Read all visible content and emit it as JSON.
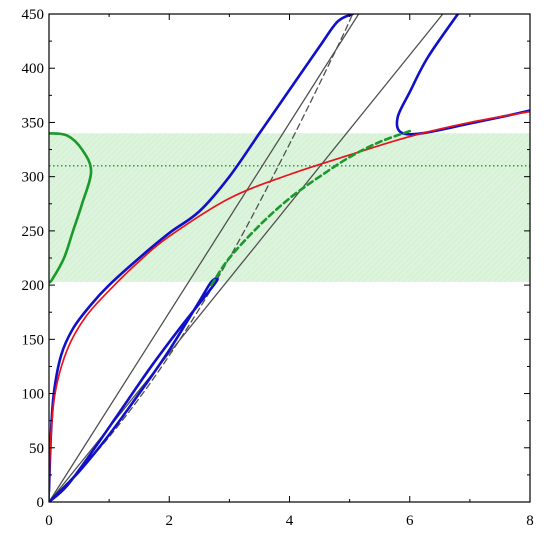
{
  "chart_data": {
    "type": "line",
    "title": "",
    "xlabel": "",
    "ylabel": "",
    "xlim": [
      0,
      8
    ],
    "ylim": [
      0,
      450
    ],
    "x_ticks": [
      "0",
      "2",
      "4",
      "6",
      "8"
    ],
    "y_ticks": [
      "0",
      "50",
      "100",
      "150",
      "200",
      "250",
      "300",
      "350",
      "400",
      "450"
    ],
    "grid": false,
    "legend": "none",
    "colors": {
      "blue": "#1010c8",
      "red": "#e8141c",
      "green": "#1a9a2a",
      "gray": "#505050",
      "band_fill": "#d6f2d6"
    },
    "shaded_band": {
      "y": [
        203,
        340
      ]
    },
    "hline_dotted": {
      "y": 310
    },
    "series": [
      {
        "id": "gray-line-1",
        "style": "gray solid",
        "points": [
          [
            0,
            0
          ],
          [
            5.15,
            450
          ]
        ]
      },
      {
        "id": "gray-line-2",
        "style": "gray solid",
        "points": [
          [
            0,
            0
          ],
          [
            6.55,
            450
          ]
        ]
      },
      {
        "id": "gray-dashed",
        "style": "gray dashed",
        "points": [
          [
            0,
            0
          ],
          [
            1.0,
            60
          ],
          [
            2.0,
            135
          ],
          [
            3.0,
            225
          ],
          [
            4.0,
            330
          ],
          [
            4.8,
            420
          ],
          [
            5.05,
            450
          ]
        ]
      },
      {
        "id": "blue-upper",
        "style": "blue",
        "points": [
          [
            0.0,
            10
          ],
          [
            0.03,
            60
          ],
          [
            0.08,
            100
          ],
          [
            0.2,
            135
          ],
          [
            0.4,
            160
          ],
          [
            0.7,
            182
          ],
          [
            1.0,
            200
          ],
          [
            1.5,
            225
          ],
          [
            2.0,
            248
          ],
          [
            2.5,
            268
          ],
          [
            3.0,
            300
          ],
          [
            3.5,
            340
          ],
          [
            4.0,
            380
          ],
          [
            4.5,
            420
          ],
          [
            4.8,
            443
          ],
          [
            5.05,
            450
          ]
        ]
      },
      {
        "id": "blue-lower-right",
        "style": "blue",
        "points": [
          [
            6.8,
            450
          ],
          [
            6.3,
            410
          ],
          [
            6.0,
            378
          ],
          [
            5.8,
            355
          ],
          [
            5.85,
            341
          ],
          [
            6.2,
            340
          ],
          [
            7.0,
            349
          ],
          [
            7.6,
            356
          ],
          [
            8.0,
            361
          ]
        ]
      },
      {
        "id": "blue-loop",
        "style": "blue",
        "points": [
          [
            0.0,
            0
          ],
          [
            0.3,
            15
          ],
          [
            0.7,
            45
          ],
          [
            1.2,
            85
          ],
          [
            1.7,
            125
          ],
          [
            2.2,
            162
          ],
          [
            2.6,
            190
          ],
          [
            2.8,
            205
          ],
          [
            2.7,
            203
          ],
          [
            2.5,
            185
          ],
          [
            2.0,
            140
          ],
          [
            1.5,
            100
          ],
          [
            1.0,
            62
          ],
          [
            0.5,
            28
          ],
          [
            0.0,
            0
          ]
        ]
      },
      {
        "id": "red-curve",
        "style": "red",
        "points": [
          [
            0.0,
            0
          ],
          [
            0.02,
            50
          ],
          [
            0.1,
            100
          ],
          [
            0.3,
            140
          ],
          [
            0.6,
            170
          ],
          [
            1.0,
            195
          ],
          [
            1.5,
            222
          ],
          [
            2.0,
            245
          ],
          [
            3.0,
            280
          ],
          [
            4.0,
            302
          ],
          [
            5.0,
            320
          ],
          [
            6.0,
            337
          ],
          [
            7.0,
            350
          ],
          [
            8.0,
            360
          ]
        ]
      },
      {
        "id": "green-dashed",
        "style": "green dashed",
        "points": [
          [
            2.7,
            200
          ],
          [
            3.0,
            225
          ],
          [
            3.5,
            255
          ],
          [
            4.0,
            280
          ],
          [
            4.5,
            300
          ],
          [
            5.0,
            318
          ],
          [
            5.5,
            332
          ],
          [
            6.0,
            342
          ]
        ]
      },
      {
        "id": "green-left",
        "style": "green",
        "points": [
          [
            0.0,
            340
          ],
          [
            0.3,
            338
          ],
          [
            0.55,
            325
          ],
          [
            0.7,
            305
          ],
          [
            0.55,
            275
          ],
          [
            0.4,
            250
          ],
          [
            0.25,
            225
          ],
          [
            0.05,
            205
          ],
          [
            0.0,
            203
          ]
        ]
      }
    ]
  }
}
